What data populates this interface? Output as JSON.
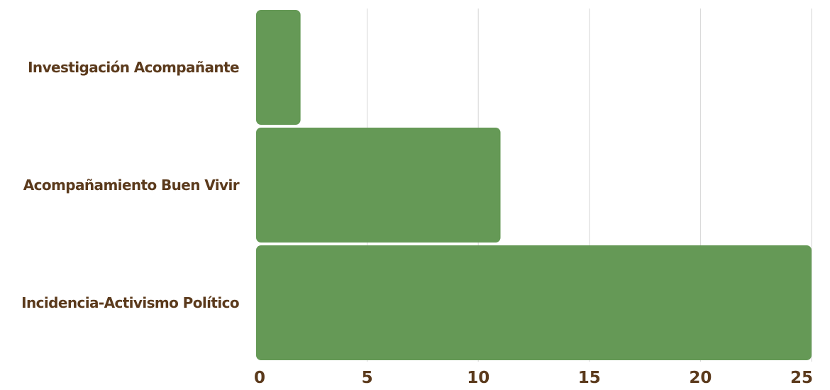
{
  "chart_data": {
    "type": "bar",
    "orientation": "horizontal",
    "categories": [
      "Investigación Acompañante",
      "Acompañamiento Buen Vivir",
      "Incidencia-Activismo Político"
    ],
    "values": [
      2,
      11,
      25
    ],
    "title": "",
    "xlabel": "",
    "ylabel": "",
    "xlim": [
      0,
      25
    ],
    "x_ticks": [
      0,
      5,
      10,
      15,
      20,
      25
    ],
    "grid": "vertical",
    "legend": "none"
  },
  "colors": {
    "bar": "#659956",
    "label": "#5b3a1c",
    "grid": "#d6d6d6"
  }
}
